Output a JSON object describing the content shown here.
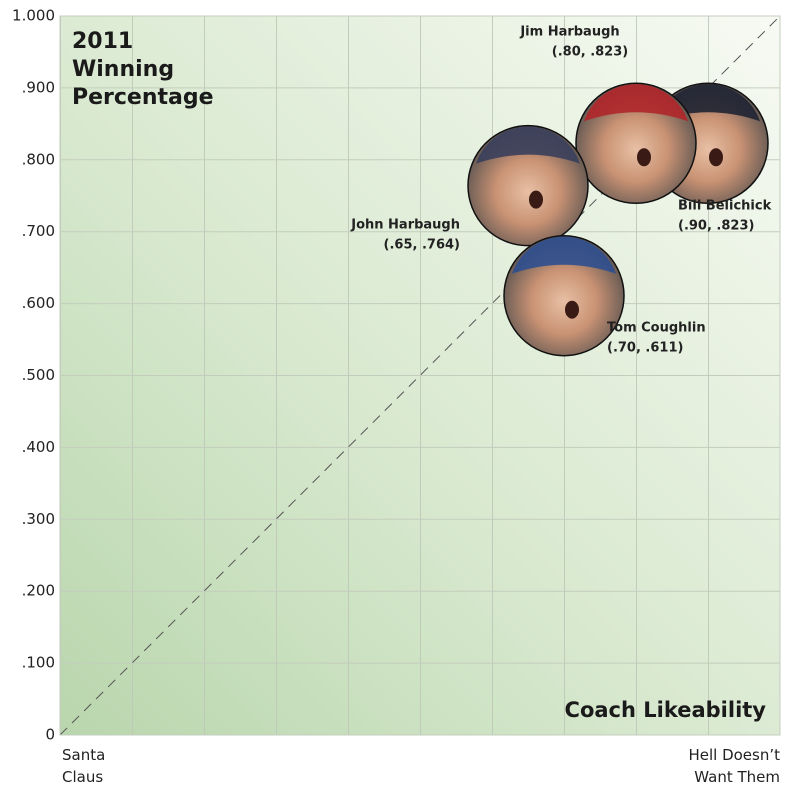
{
  "chart_data": {
    "type": "scatter",
    "title": "2011 Winning Percentage",
    "x_label": "Coach Likeability",
    "xlim": [
      0,
      1
    ],
    "xticks": [
      {
        "value": 0,
        "label": "Santa Claus"
      },
      {
        "value": 1,
        "label": "Hell Doesn’t Want Them"
      }
    ],
    "ylim": [
      0,
      1
    ],
    "yticks": [
      0,
      {
        "value": 0.1,
        "label": ".100"
      },
      {
        "value": 0.2,
        "label": ".200"
      },
      {
        "value": 0.3,
        "label": ".300"
      },
      {
        "value": 0.4,
        "label": ".400"
      },
      {
        "value": 0.5,
        "label": ".500"
      },
      {
        "value": 0.6,
        "label": ".600"
      },
      {
        "value": 0.7,
        "label": ".700"
      },
      {
        "value": 0.8,
        "label": ".800"
      },
      {
        "value": 0.9,
        "label": ".900"
      },
      {
        "value": 1,
        "label": "1.000"
      }
    ],
    "grid": true,
    "series": [
      {
        "name": "John Harbaugh",
        "x": [
          0.65
        ],
        "values": [
          0.764
        ],
        "value_labels": [
          "(.65, .764)"
        ],
        "color": "#3a3f5c"
      },
      {
        "name": "Tom Coughlin",
        "x": [
          0.7
        ],
        "values": [
          0.611
        ],
        "value_labels": [
          "(.70, .611)"
        ],
        "color": "#2f4f8f"
      },
      {
        "name": "Jim Harbaugh",
        "x": [
          0.8
        ],
        "values": [
          0.823
        ],
        "value_labels": [
          "(.80, .823)"
        ],
        "color": "#b0262a"
      },
      {
        "name": "Bill Belichick",
        "x": [
          0.9
        ],
        "values": [
          0.823
        ],
        "value_labels": [
          "(.90, .823)"
        ],
        "color": "#1f2433"
      }
    ]
  }
}
